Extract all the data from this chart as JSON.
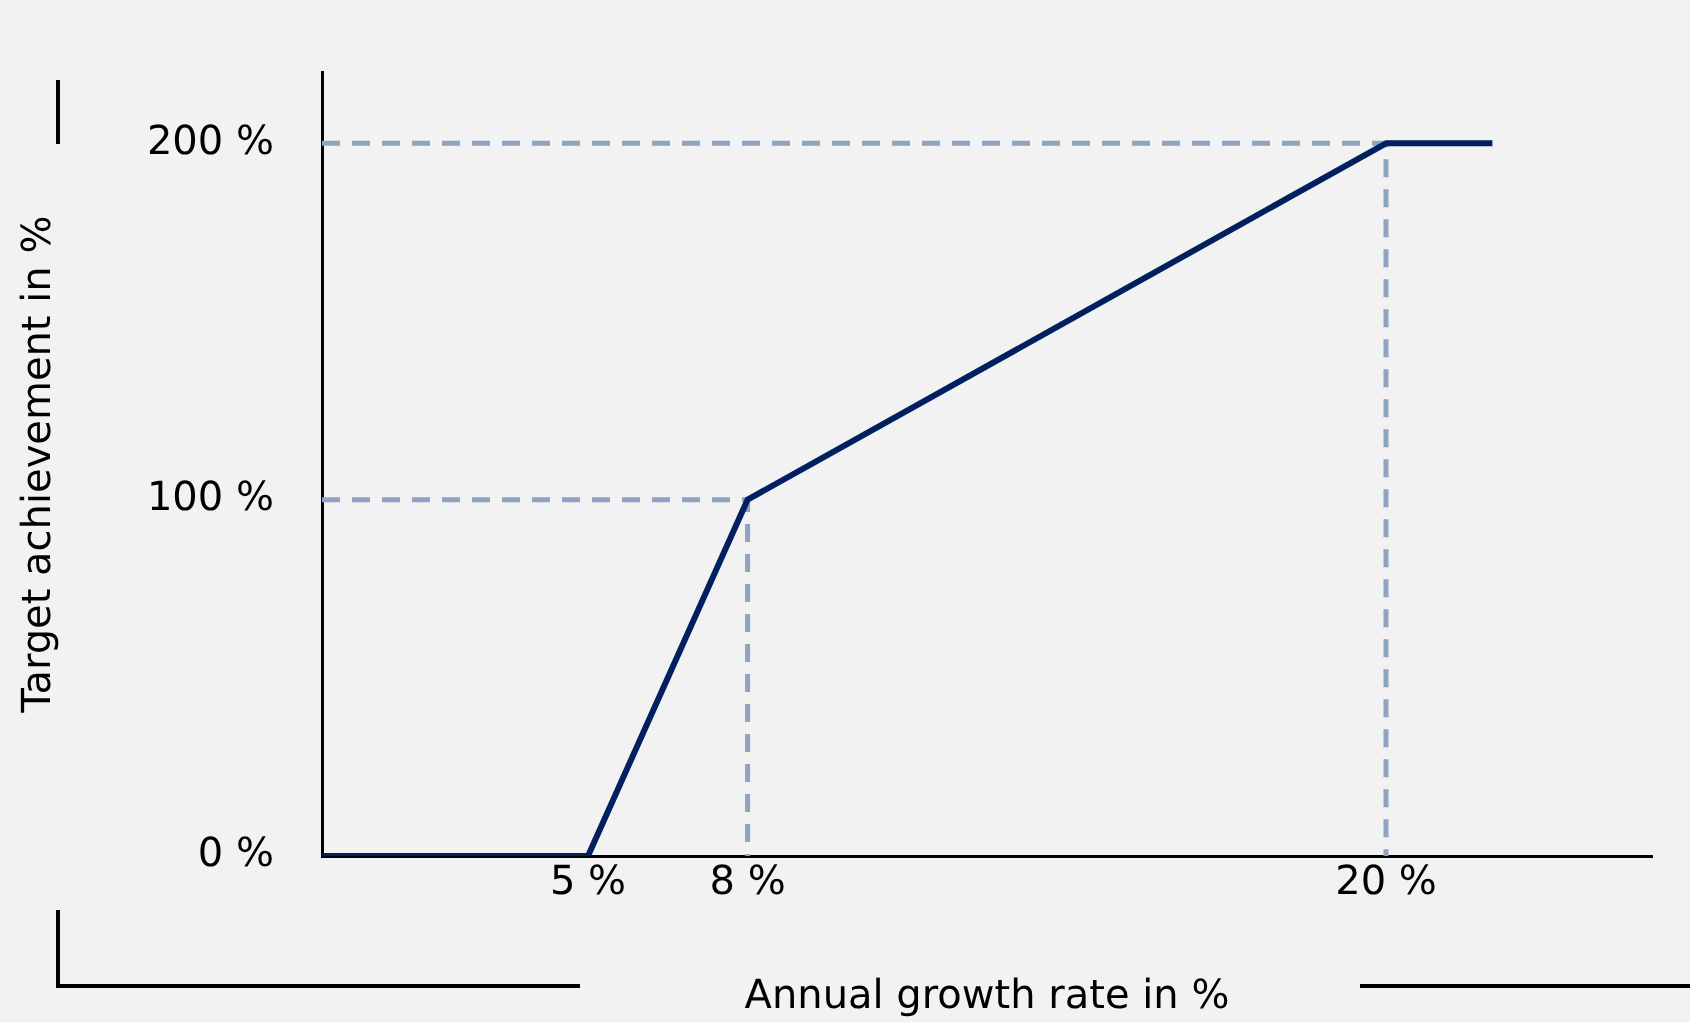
{
  "chart_data": {
    "type": "line",
    "xlabel": "Annual growth rate in %",
    "ylabel": "Target achievement in %",
    "xlim": [
      0,
      25
    ],
    "ylim": [
      0,
      220
    ],
    "xticks": [
      {
        "value": 5,
        "label": "5 %"
      },
      {
        "value": 8,
        "label": "8 %"
      },
      {
        "value": 20,
        "label": "20 %"
      }
    ],
    "yticks": [
      {
        "value": 0,
        "label": "0 %"
      },
      {
        "value": 100,
        "label": "100 %"
      },
      {
        "value": 200,
        "label": "200 %"
      }
    ],
    "grid": false,
    "legend": false,
    "marker": "none",
    "series": [
      {
        "color": "#002060",
        "x": [
          0,
          5,
          8,
          20,
          22
        ],
        "values": [
          0,
          0,
          100,
          200,
          200
        ]
      },
      {
        "color": "#8ea3bf",
        "line_style": "dashed",
        "x": [
          0,
          8,
          8
        ],
        "values": [
          100,
          100,
          0
        ]
      },
      {
        "color": "#8ea3bf",
        "line_style": "dashed",
        "x": [
          0,
          20,
          20
        ],
        "values": [
          200,
          200,
          0
        ]
      }
    ]
  }
}
